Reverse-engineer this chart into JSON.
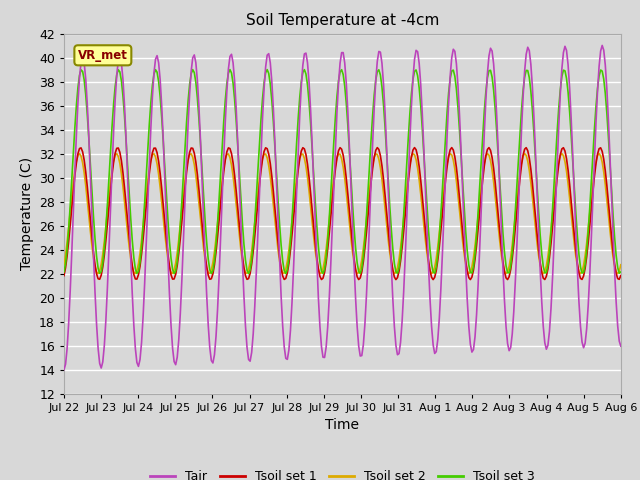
{
  "title": "Soil Temperature at -4cm",
  "xlabel": "Time",
  "ylabel": "Temperature (C)",
  "ylim": [
    12,
    42
  ],
  "yticks": [
    12,
    14,
    16,
    18,
    20,
    22,
    24,
    26,
    28,
    30,
    32,
    34,
    36,
    38,
    40,
    42
  ],
  "bg_color": "#d8d8d8",
  "plot_bg_color": "#d8d8d8",
  "grid_color": "#ffffff",
  "annotation_text": "VR_met",
  "annotation_bg": "#ffff99",
  "annotation_border": "#888800",
  "annotation_text_color": "#880000",
  "colors": {
    "Tair": "#bb44bb",
    "Tsoil1": "#cc0000",
    "Tsoil2": "#ddaa00",
    "Tsoil3": "#44cc00"
  },
  "legend_labels": [
    "Tair",
    "Tsoil set 1",
    "Tsoil set 2",
    "Tsoil set 3"
  ],
  "xtick_labels": [
    "Jul 22",
    "Jul 23",
    "Jul 24",
    "Jul 25",
    "Jul 26",
    "Jul 27",
    "Jul 28",
    "Jul 29",
    "Jul 30",
    "Jul 31",
    "Aug 1",
    "Aug 2",
    "Aug 3",
    "Aug 4",
    "Aug 5",
    "Aug 6"
  ],
  "n_days": 15,
  "n_points": 360,
  "phase_shift_tair": 0.0,
  "phase_shift_tsoil1": 0.35,
  "phase_shift_tsoil2": 0.55,
  "phase_shift_tsoil3": 0.18
}
